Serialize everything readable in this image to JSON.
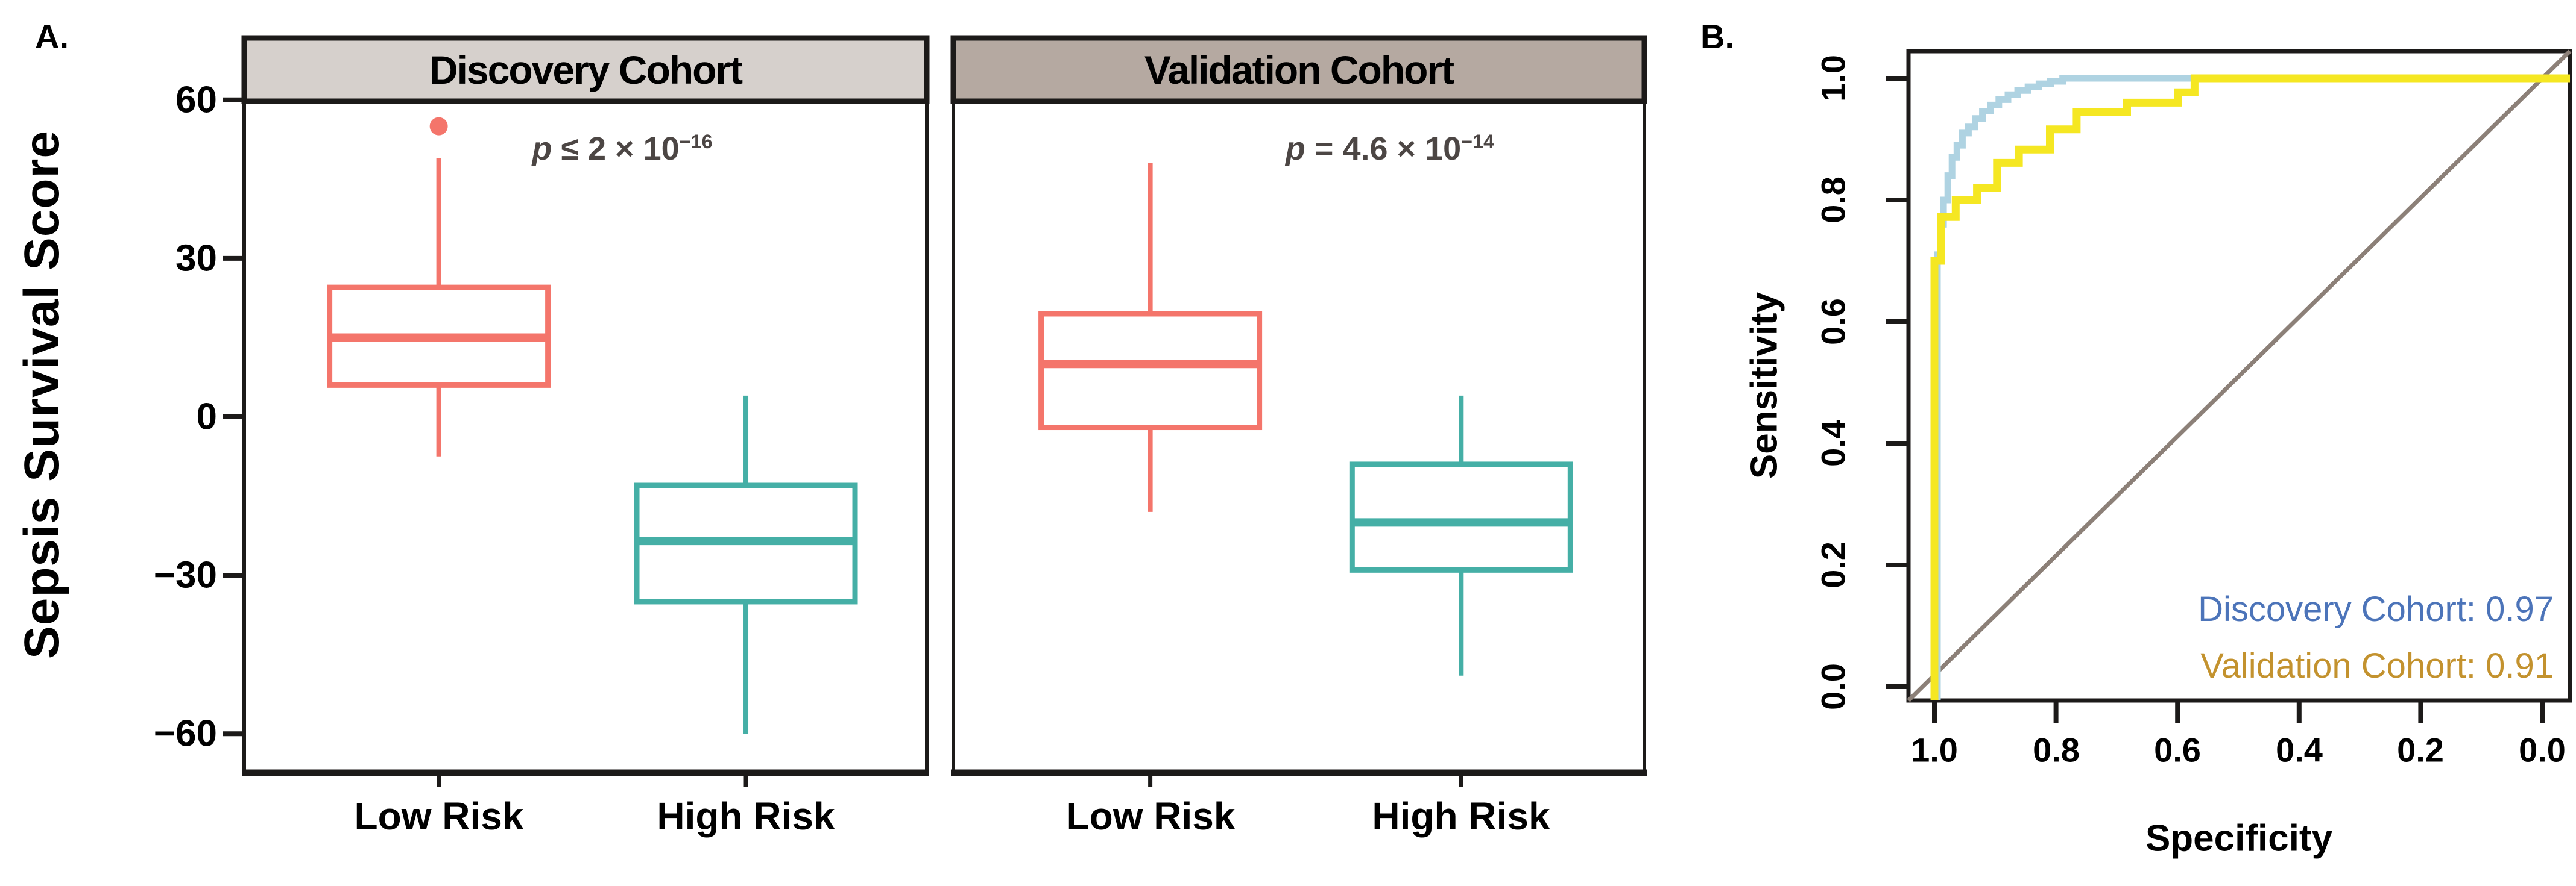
{
  "figure": {
    "panel_a_label": "A.",
    "panel_b_label": "B."
  },
  "colors": {
    "salmon": "#F4756B",
    "teal": "#45AFA6",
    "discovery_header_bg": "#D6D0CC",
    "validation_header_bg": "#B5A9A1",
    "axis_black": "#1C1A19",
    "pvalue_gray": "#4C4644",
    "roc_blue": "#AFD3E2",
    "roc_yellow": "#F5E722",
    "diagonal_gray": "#8C8078",
    "legend_blue": "#4C74B9",
    "legend_gold": "#C3922E"
  },
  "chart_data": [
    {
      "type": "box",
      "title": "Sepsis Survival Score by risk group",
      "ylabel": "Sepsis Survival Score",
      "ytick_labels": [
        "60",
        "30",
        "0",
        "−30",
        "−60"
      ],
      "yticks_values": [
        60,
        30,
        0,
        -30,
        -60
      ],
      "ylim": [
        -66,
        63
      ],
      "categories": [
        "Low Risk",
        "High Risk"
      ],
      "panels": [
        {
          "title": "Discovery Cohort",
          "p_value": {
            "prefix": "p",
            "body": " ≤ 2 × 10",
            "exponent": "−16"
          },
          "groups": [
            {
              "label": "Low Risk",
              "color_key": "salmon",
              "whisker_low": -7.5,
              "q1": 6,
              "median": 15,
              "q3": 24.5,
              "whisker_high": 49,
              "outliers": [
                55
              ]
            },
            {
              "label": "High Risk",
              "color_key": "teal",
              "whisker_low": -60,
              "q1": -35,
              "median": -23.5,
              "q3": -13,
              "whisker_high": 4,
              "outliers": []
            }
          ]
        },
        {
          "title": "Validation Cohort",
          "p_value": {
            "prefix": "p",
            "body": " = 4.6 × 10",
            "exponent": "−14"
          },
          "groups": [
            {
              "label": "Low Risk",
              "color_key": "salmon",
              "whisker_low": -18,
              "q1": -2,
              "median": 10,
              "q3": 19.5,
              "whisker_high": 48,
              "outliers": []
            },
            {
              "label": "High Risk",
              "color_key": "teal",
              "whisker_low": -49,
              "q1": -29,
              "median": -20,
              "q3": -9,
              "whisker_high": 4,
              "outliers": []
            }
          ]
        }
      ]
    },
    {
      "type": "line",
      "title": "ROC curves",
      "xlabel": "Specificity",
      "ylabel": "Sensitivity",
      "x_axis_reversed": true,
      "xticks": [
        "1.0",
        "0.8",
        "0.6",
        "0.4",
        "0.2",
        "0.0"
      ],
      "yticks": [
        "1.0",
        "0.8",
        "0.6",
        "0.4",
        "0.2",
        "0.0"
      ],
      "reference_line": {
        "from": [
          1.0,
          0.0
        ],
        "to": [
          0.0,
          1.0
        ],
        "color_key": "diagonal_gray"
      },
      "series": [
        {
          "name": "Discovery Cohort",
          "auc": "0.97",
          "color_key": "roc_blue",
          "points": [
            [
              0.995,
              0.0
            ],
            [
              0.995,
              0.71
            ],
            [
              0.99,
              0.71
            ],
            [
              0.99,
              0.76
            ],
            [
              0.985,
              0.76
            ],
            [
              0.985,
              0.8
            ],
            [
              0.978,
              0.8
            ],
            [
              0.978,
              0.84
            ],
            [
              0.971,
              0.84
            ],
            [
              0.971,
              0.87
            ],
            [
              0.963,
              0.87
            ],
            [
              0.963,
              0.89
            ],
            [
              0.954,
              0.89
            ],
            [
              0.954,
              0.91
            ],
            [
              0.944,
              0.91
            ],
            [
              0.944,
              0.92
            ],
            [
              0.933,
              0.92
            ],
            [
              0.933,
              0.934
            ],
            [
              0.921,
              0.934
            ],
            [
              0.921,
              0.946
            ],
            [
              0.908,
              0.946
            ],
            [
              0.908,
              0.956
            ],
            [
              0.894,
              0.956
            ],
            [
              0.894,
              0.965
            ],
            [
              0.879,
              0.965
            ],
            [
              0.879,
              0.973
            ],
            [
              0.863,
              0.973
            ],
            [
              0.863,
              0.98
            ],
            [
              0.846,
              0.98
            ],
            [
              0.846,
              0.986
            ],
            [
              0.828,
              0.986
            ],
            [
              0.828,
              0.991
            ],
            [
              0.809,
              0.991
            ],
            [
              0.809,
              0.995
            ],
            [
              0.789,
              0.995
            ],
            [
              0.789,
              1.0
            ],
            [
              0.0,
              1.0
            ]
          ]
        },
        {
          "name": "Validation Cohort",
          "auc": "0.91",
          "color_key": "roc_yellow",
          "points": [
            [
              1.0,
              0.0
            ],
            [
              1.0,
              0.7
            ],
            [
              0.989,
              0.7
            ],
            [
              0.989,
              0.772
            ],
            [
              0.965,
              0.772
            ],
            [
              0.965,
              0.8
            ],
            [
              0.93,
              0.8
            ],
            [
              0.93,
              0.82
            ],
            [
              0.897,
              0.82
            ],
            [
              0.897,
              0.861
            ],
            [
              0.861,
              0.861
            ],
            [
              0.861,
              0.883
            ],
            [
              0.81,
              0.883
            ],
            [
              0.81,
              0.916
            ],
            [
              0.766,
              0.916
            ],
            [
              0.766,
              0.945
            ],
            [
              0.683,
              0.945
            ],
            [
              0.683,
              0.96
            ],
            [
              0.599,
              0.96
            ],
            [
              0.599,
              0.977
            ],
            [
              0.572,
              0.977
            ],
            [
              0.572,
              1.0
            ],
            [
              0.0,
              1.0
            ]
          ]
        }
      ],
      "legend": [
        {
          "label": "Discovery Cohort: 0.97",
          "color_key": "legend_blue"
        },
        {
          "label": "Validation Cohort: 0.91",
          "color_key": "legend_gold"
        }
      ]
    }
  ]
}
